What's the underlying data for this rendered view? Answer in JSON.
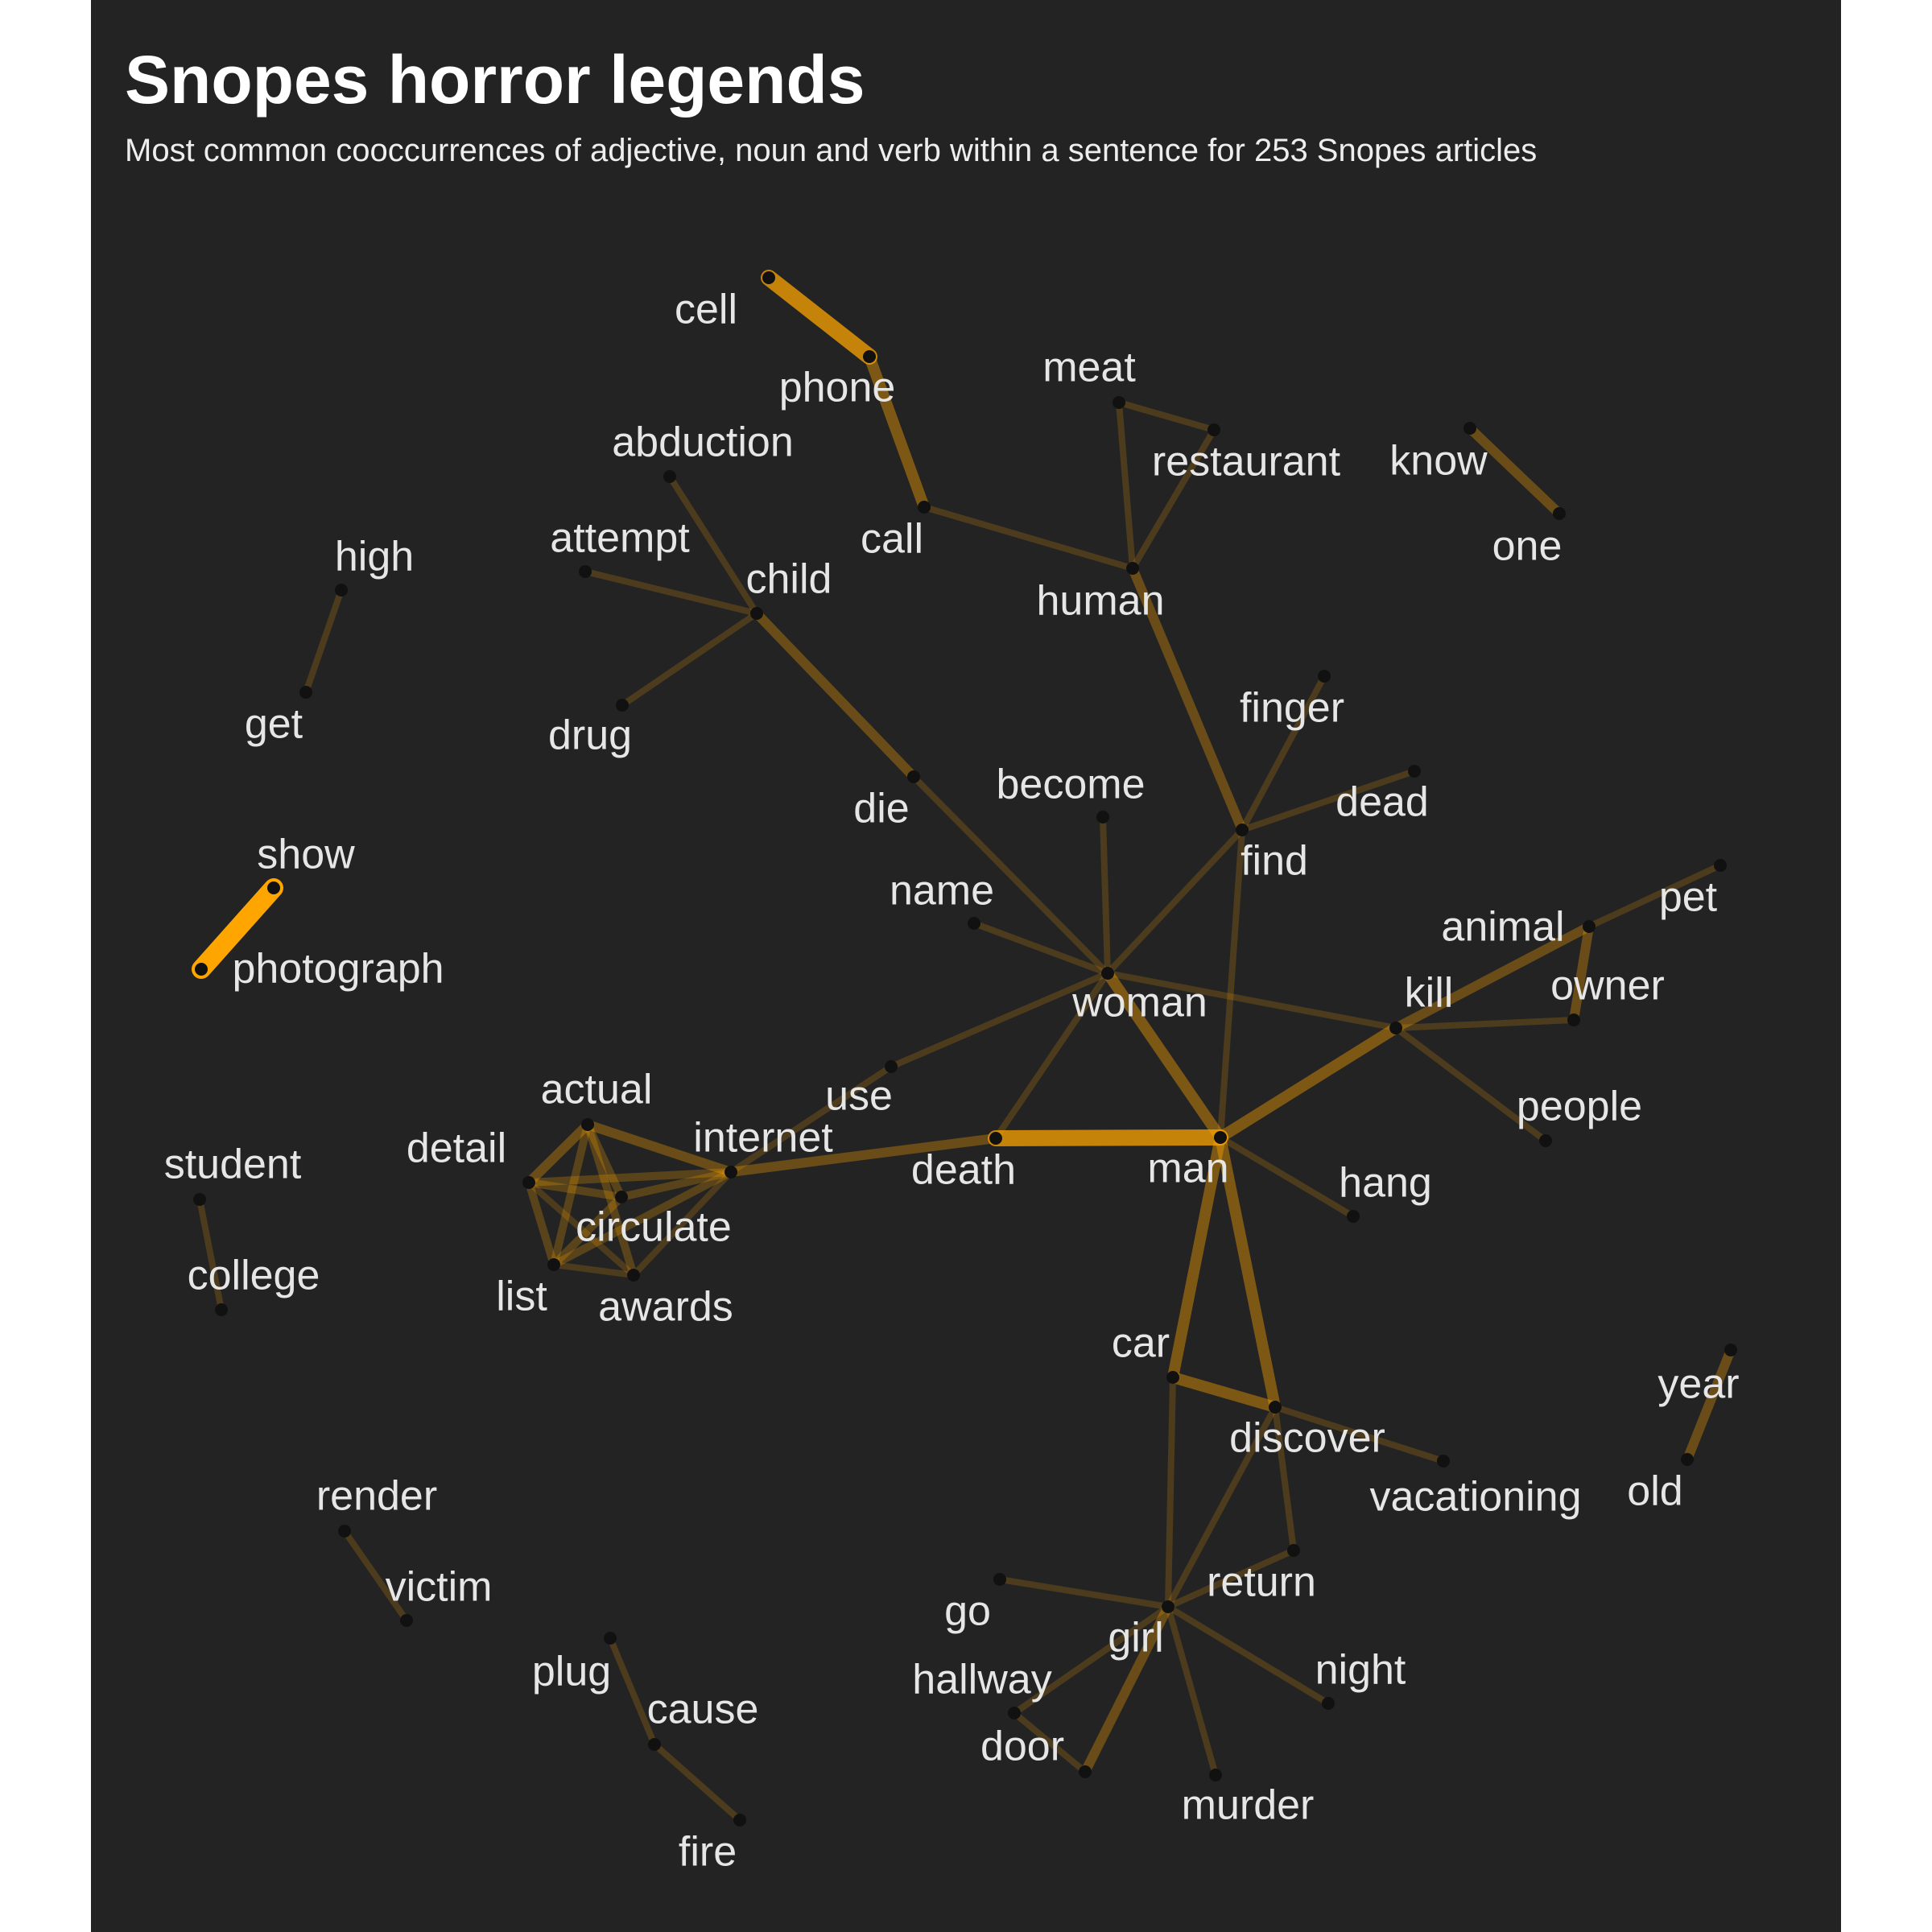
{
  "title": "Snopes horror legends",
  "subtitle": "Most common cooccurrences of adjective, noun and verb within a sentence for 253 Snopes articles",
  "colors": {
    "background": "#232323",
    "edge": "#ffa500",
    "node": "#111111",
    "label": "#e6e6e6"
  },
  "nodes": [
    {
      "id": "cell",
      "label": "cell"
    },
    {
      "id": "phone",
      "label": "phone"
    },
    {
      "id": "meat",
      "label": "meat"
    },
    {
      "id": "restaurant",
      "label": "restaurant"
    },
    {
      "id": "know",
      "label": "know"
    },
    {
      "id": "one",
      "label": "one"
    },
    {
      "id": "abduction",
      "label": "abduction"
    },
    {
      "id": "call",
      "label": "call"
    },
    {
      "id": "attempt",
      "label": "attempt"
    },
    {
      "id": "child",
      "label": "child"
    },
    {
      "id": "human",
      "label": "human"
    },
    {
      "id": "high",
      "label": "high"
    },
    {
      "id": "get",
      "label": "get"
    },
    {
      "id": "drug",
      "label": "drug"
    },
    {
      "id": "finger",
      "label": "finger"
    },
    {
      "id": "become",
      "label": "become"
    },
    {
      "id": "dead",
      "label": "dead"
    },
    {
      "id": "die",
      "label": "die"
    },
    {
      "id": "find",
      "label": "find"
    },
    {
      "id": "show",
      "label": "show"
    },
    {
      "id": "name",
      "label": "name"
    },
    {
      "id": "pet",
      "label": "pet"
    },
    {
      "id": "animal",
      "label": "animal"
    },
    {
      "id": "photograph",
      "label": "photograph"
    },
    {
      "id": "owner",
      "label": "owner"
    },
    {
      "id": "kill",
      "label": "kill"
    },
    {
      "id": "woman",
      "label": "woman"
    },
    {
      "id": "use",
      "label": "use"
    },
    {
      "id": "actual",
      "label": "actual"
    },
    {
      "id": "people",
      "label": "people"
    },
    {
      "id": "internet",
      "label": "internet"
    },
    {
      "id": "detail",
      "label": "detail"
    },
    {
      "id": "student",
      "label": "student"
    },
    {
      "id": "death",
      "label": "death"
    },
    {
      "id": "man",
      "label": "man"
    },
    {
      "id": "hang",
      "label": "hang"
    },
    {
      "id": "circulate",
      "label": "circulate"
    },
    {
      "id": "college",
      "label": "college"
    },
    {
      "id": "list",
      "label": "list"
    },
    {
      "id": "awards",
      "label": "awards"
    },
    {
      "id": "car",
      "label": "car"
    },
    {
      "id": "year",
      "label": "year"
    },
    {
      "id": "discover",
      "label": "discover"
    },
    {
      "id": "old",
      "label": "old"
    },
    {
      "id": "vacationing",
      "label": "vacationing"
    },
    {
      "id": "render",
      "label": "render"
    },
    {
      "id": "return",
      "label": "return"
    },
    {
      "id": "victim",
      "label": "victim"
    },
    {
      "id": "go",
      "label": "go"
    },
    {
      "id": "girl",
      "label": "girl"
    },
    {
      "id": "plug",
      "label": "plug"
    },
    {
      "id": "night",
      "label": "night"
    },
    {
      "id": "hallway",
      "label": "hallway"
    },
    {
      "id": "cause",
      "label": "cause"
    },
    {
      "id": "door",
      "label": "door"
    },
    {
      "id": "murder",
      "label": "murder"
    },
    {
      "id": "fire",
      "label": "fire"
    }
  ],
  "edges": [
    {
      "source": "show",
      "target": "photograph",
      "weight": 10
    },
    {
      "source": "cell",
      "target": "phone",
      "weight": 8
    },
    {
      "source": "death",
      "target": "man",
      "weight": 8
    },
    {
      "source": "phone",
      "target": "call",
      "weight": 5
    },
    {
      "source": "know",
      "target": "one",
      "weight": 4
    },
    {
      "source": "year",
      "target": "old",
      "weight": 4
    },
    {
      "source": "man",
      "target": "kill",
      "weight": 5
    },
    {
      "source": "kill",
      "target": "animal",
      "weight": 4
    },
    {
      "source": "animal",
      "target": "owner",
      "weight": 4
    },
    {
      "source": "man",
      "target": "woman",
      "weight": 5
    },
    {
      "source": "man",
      "target": "car",
      "weight": 5
    },
    {
      "source": "man",
      "target": "discover",
      "weight": 5
    },
    {
      "source": "car",
      "target": "discover",
      "weight": 5
    },
    {
      "source": "girl",
      "target": "door",
      "weight": 4
    },
    {
      "source": "human",
      "target": "find",
      "weight": 4
    },
    {
      "source": "child",
      "target": "die",
      "weight": 4
    },
    {
      "source": "internet",
      "target": "death",
      "weight": 4
    },
    {
      "source": "actual",
      "target": "internet",
      "weight": 4
    },
    {
      "source": "actual",
      "target": "detail",
      "weight": 4
    },
    {
      "source": "detail",
      "target": "internet",
      "weight": 3
    },
    {
      "source": "actual",
      "target": "list",
      "weight": 3
    },
    {
      "source": "actual",
      "target": "circulate",
      "weight": 3
    },
    {
      "source": "actual",
      "target": "awards",
      "weight": 3
    },
    {
      "source": "detail",
      "target": "list",
      "weight": 3
    },
    {
      "source": "detail",
      "target": "circulate",
      "weight": 3
    },
    {
      "source": "detail",
      "target": "awards",
      "weight": 2
    },
    {
      "source": "list",
      "target": "internet",
      "weight": 3
    },
    {
      "source": "list",
      "target": "circulate",
      "weight": 3
    },
    {
      "source": "list",
      "target": "awards",
      "weight": 2
    },
    {
      "source": "circulate",
      "target": "internet",
      "weight": 3
    },
    {
      "source": "awards",
      "target": "internet",
      "weight": 2
    },
    {
      "source": "call",
      "target": "human",
      "weight": 2
    },
    {
      "source": "meat",
      "target": "restaurant",
      "weight": 2
    },
    {
      "source": "meat",
      "target": "human",
      "weight": 2
    },
    {
      "source": "restaurant",
      "target": "human",
      "weight": 2
    },
    {
      "source": "abduction",
      "target": "child",
      "weight": 2
    },
    {
      "source": "attempt",
      "target": "child",
      "weight": 2
    },
    {
      "source": "drug",
      "target": "child",
      "weight": 2
    },
    {
      "source": "high",
      "target": "get",
      "weight": 2
    },
    {
      "source": "finger",
      "target": "find",
      "weight": 2
    },
    {
      "source": "dead",
      "target": "find",
      "weight": 2
    },
    {
      "source": "find",
      "target": "woman",
      "weight": 2
    },
    {
      "source": "find",
      "target": "man",
      "weight": 2
    },
    {
      "source": "die",
      "target": "woman",
      "weight": 2
    },
    {
      "source": "become",
      "target": "woman",
      "weight": 2
    },
    {
      "source": "name",
      "target": "woman",
      "weight": 2
    },
    {
      "source": "woman",
      "target": "kill",
      "weight": 2
    },
    {
      "source": "woman",
      "target": "use",
      "weight": 2
    },
    {
      "source": "woman",
      "target": "death",
      "weight": 2
    },
    {
      "source": "use",
      "target": "internet",
      "weight": 2
    },
    {
      "source": "pet",
      "target": "animal",
      "weight": 2
    },
    {
      "source": "kill",
      "target": "owner",
      "weight": 2
    },
    {
      "source": "kill",
      "target": "people",
      "weight": 2
    },
    {
      "source": "man",
      "target": "hang",
      "weight": 2
    },
    {
      "source": "student",
      "target": "college",
      "weight": 2
    },
    {
      "source": "car",
      "target": "girl",
      "weight": 2
    },
    {
      "source": "discover",
      "target": "vacationing",
      "weight": 2
    },
    {
      "source": "discover",
      "target": "return",
      "weight": 2
    },
    {
      "source": "discover",
      "target": "girl",
      "weight": 2
    },
    {
      "source": "render",
      "target": "victim",
      "weight": 2
    },
    {
      "source": "go",
      "target": "girl",
      "weight": 2
    },
    {
      "source": "girl",
      "target": "return",
      "weight": 2
    },
    {
      "source": "girl",
      "target": "night",
      "weight": 2
    },
    {
      "source": "girl",
      "target": "hallway",
      "weight": 2
    },
    {
      "source": "girl",
      "target": "murder",
      "weight": 2
    },
    {
      "source": "hallway",
      "target": "door",
      "weight": 2
    },
    {
      "source": "plug",
      "target": "cause",
      "weight": 2
    },
    {
      "source": "cause",
      "target": "fire",
      "weight": 2
    }
  ]
}
